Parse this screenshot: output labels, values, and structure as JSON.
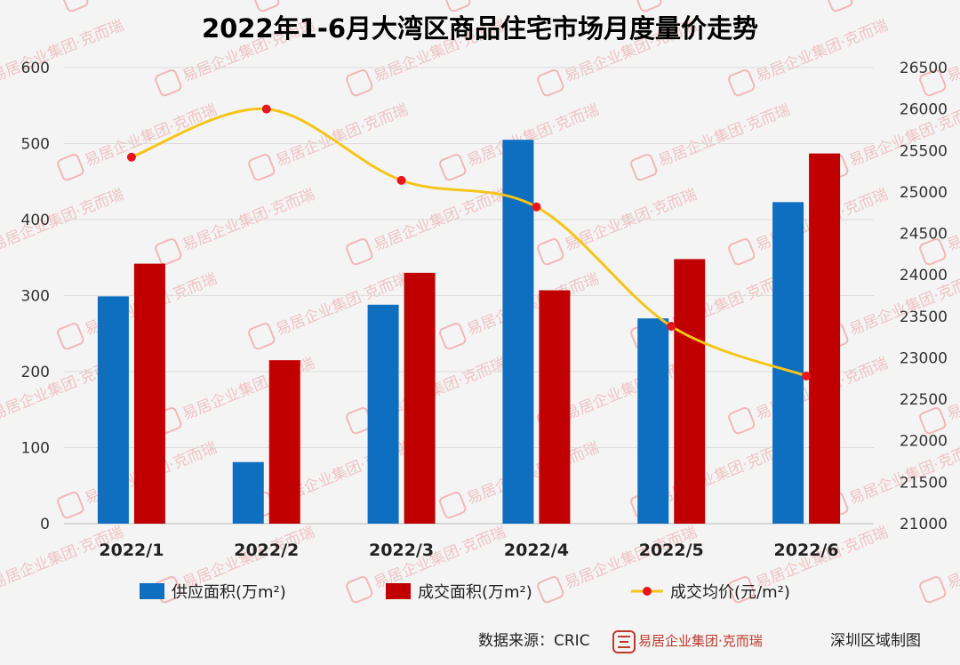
{
  "chart_data": {
    "type": "bar",
    "title": "2022年1-6月大湾区商品住宅市场月度量价走势",
    "categories": [
      "2022/1",
      "2022/2",
      "2022/3",
      "2022/4",
      "2022/5",
      "2022/6"
    ],
    "series": [
      {
        "name": "供应面积(万m²)",
        "type": "bar",
        "axis": "left",
        "color": "#0e6fc0",
        "values": [
          299,
          81,
          288,
          505,
          270,
          423
        ]
      },
      {
        "name": "成交面积(万m²)",
        "type": "bar",
        "axis": "left",
        "color": "#c00000",
        "values": [
          342,
          215,
          330,
          307,
          348,
          487
        ]
      },
      {
        "name": "成交均价(元/m²)",
        "type": "line",
        "axis": "right",
        "color": "#f5c518",
        "marker_color": "#e8151b",
        "values": [
          25420,
          26000,
          25140,
          24820,
          23380,
          22780
        ]
      }
    ],
    "ylim_left": [
      0,
      600
    ],
    "yticks_left": [
      "0",
      "100",
      "200",
      "300",
      "400",
      "500",
      "600"
    ],
    "ylim_right": [
      21000,
      26500
    ],
    "yticks_right": [
      "21000",
      "21500",
      "22000",
      "22500",
      "23000",
      "23500",
      "24000",
      "24500",
      "25000",
      "25500",
      "26000",
      "26500"
    ],
    "grid": true,
    "legend_position": "bottom"
  },
  "footer": {
    "source": "数据来源：CRIC",
    "brand": "易居企业集团·克而瑞",
    "maker": "深圳区域制图"
  },
  "watermark": {
    "text": "易居企业集团·克而瑞"
  }
}
